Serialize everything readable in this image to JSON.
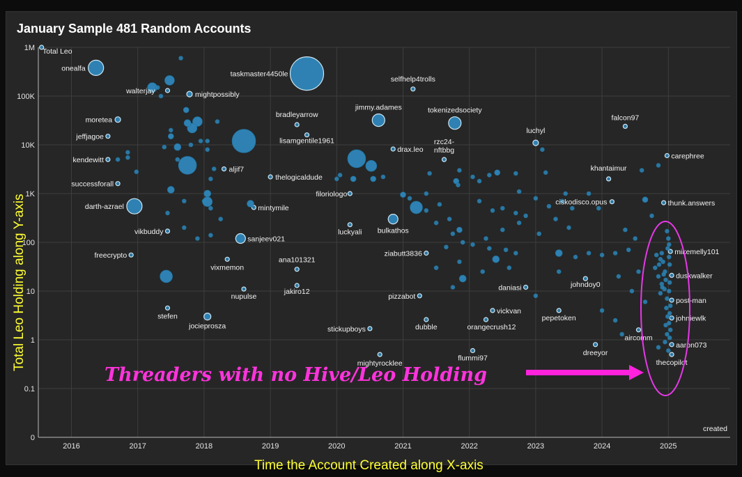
{
  "chart_data": {
    "type": "scatter",
    "title": "January Sample 481 Random Accounts",
    "xlabel": "Time the Account Created along X-axis",
    "ylabel": "Total Leo Holding along Y-axis",
    "x_axis_corner_label": "created",
    "y_axis_corner_label": "Total Leo",
    "x_ticks": [
      "2016",
      "2017",
      "2018",
      "2019",
      "2020",
      "2021",
      "2022",
      "2023",
      "2024",
      "2025"
    ],
    "y_ticks": [
      "0",
      "0.1",
      "1",
      "10",
      "100",
      "1K",
      "10K",
      "100K",
      "1M"
    ],
    "y_scale": "log",
    "xlim": [
      2015.5,
      2025.95
    ],
    "grid": true,
    "colors": {
      "point_fill": "#2e86b9",
      "point_stroke": "#cfe6f2",
      "annotation": "#ff22dd",
      "axis_title": "#ffff33"
    },
    "annotation": {
      "text": "Threaders with no Hive/Leo Holding"
    },
    "points": [
      {
        "x": 2015.55,
        "y": 1000000,
        "size": 3,
        "label": "Total Leo"
      },
      {
        "x": 2016.37,
        "y": 380000,
        "size": 11,
        "label": "onealfa"
      },
      {
        "x": 2017.45,
        "y": 130000,
        "size": 3,
        "label": "walterjay"
      },
      {
        "x": 2017.78,
        "y": 110000,
        "size": 4,
        "label": "mightpossibly"
      },
      {
        "x": 2019.55,
        "y": 290000,
        "size": 24,
        "label": "taskmaster4450le"
      },
      {
        "x": 2021.15,
        "y": 140000,
        "size": 3,
        "label": "selfhelp4trolls"
      },
      {
        "x": 2016.7,
        "y": 33000,
        "size": 4,
        "label": "moretea"
      },
      {
        "x": 2016.55,
        "y": 15000,
        "size": 3,
        "label": "jeffjagoe"
      },
      {
        "x": 2016.55,
        "y": 5000,
        "size": 3,
        "label": "kendewitt"
      },
      {
        "x": 2016.7,
        "y": 1600,
        "size": 3,
        "label": "successforall"
      },
      {
        "x": 2016.95,
        "y": 550,
        "size": 11,
        "label": "darth-azrael"
      },
      {
        "x": 2017.45,
        "y": 170,
        "size": 3,
        "label": "vikbuddy"
      },
      {
        "x": 2016.9,
        "y": 55,
        "size": 3,
        "label": "freecrypto"
      },
      {
        "x": 2017.45,
        "y": 4.5,
        "size": 3,
        "label": "stefen"
      },
      {
        "x": 2018.05,
        "y": 3,
        "size": 5,
        "label": "jocieprosza"
      },
      {
        "x": 2018.35,
        "y": 45,
        "size": 3,
        "label": "vixmemon"
      },
      {
        "x": 2018.6,
        "y": 11,
        "size": 3,
        "label": "nupulse"
      },
      {
        "x": 2018.55,
        "y": 120,
        "size": 7,
        "label": "sanjeev021"
      },
      {
        "x": 2018.75,
        "y": 520,
        "size": 3,
        "label": "mintymile"
      },
      {
        "x": 2018.3,
        "y": 3200,
        "size": 3,
        "label": "aljif7"
      },
      {
        "x": 2019.0,
        "y": 2200,
        "size": 3,
        "label": "thelogicaldude"
      },
      {
        "x": 2019.4,
        "y": 26000,
        "size": 3,
        "label": "bradleyarrow"
      },
      {
        "x": 2019.55,
        "y": 16000,
        "size": 3,
        "label": "lisamgentile1961"
      },
      {
        "x": 2019.4,
        "y": 28,
        "size": 3,
        "label": "ana101321"
      },
      {
        "x": 2019.4,
        "y": 13,
        "size": 3,
        "label": "jakiro12"
      },
      {
        "x": 2020.2,
        "y": 1000,
        "size": 3,
        "label": "filoriologo"
      },
      {
        "x": 2020.2,
        "y": 230,
        "size": 3,
        "label": "luckyali"
      },
      {
        "x": 2020.63,
        "y": 32000,
        "size": 9,
        "label": "jimmy.adames"
      },
      {
        "x": 2020.85,
        "y": 8200,
        "size": 3,
        "label": "drax.leo"
      },
      {
        "x": 2020.85,
        "y": 300,
        "size": 7,
        "label": "bulkathos"
      },
      {
        "x": 2021.35,
        "y": 60,
        "size": 3,
        "label": "ziabutt3836"
      },
      {
        "x": 2021.25,
        "y": 8,
        "size": 3,
        "label": "pizzabot"
      },
      {
        "x": 2020.5,
        "y": 1.7,
        "size": 3,
        "label": "stickupboys"
      },
      {
        "x": 2021.35,
        "y": 2.6,
        "size": 3,
        "label": "dubble"
      },
      {
        "x": 2021.78,
        "y": 28000,
        "size": 9,
        "label": "tokenizedsociety"
      },
      {
        "x": 2021.62,
        "y": 5000,
        "size": 3,
        "label": "rzc24-nftbbg"
      },
      {
        "x": 2020.65,
        "y": 0.5,
        "size": 3,
        "label": "mightyrocklee"
      },
      {
        "x": 2022.05,
        "y": 0.6,
        "size": 3,
        "label": "flummi97"
      },
      {
        "x": 2022.35,
        "y": 4,
        "size": 3,
        "label": "vickvan"
      },
      {
        "x": 2022.25,
        "y": 2.6,
        "size": 3,
        "label": "orangecrush12"
      },
      {
        "x": 2022.85,
        "y": 12,
        "size": 3,
        "label": "daniasi"
      },
      {
        "x": 2023.0,
        "y": 11000,
        "size": 4,
        "label": "luchyl"
      },
      {
        "x": 2023.35,
        "y": 4,
        "size": 3,
        "label": "pepetoken"
      },
      {
        "x": 2023.75,
        "y": 18,
        "size": 3,
        "label": "johndoy0"
      },
      {
        "x": 2023.9,
        "y": 0.8,
        "size": 3,
        "label": "dreeyor"
      },
      {
        "x": 2024.35,
        "y": 24000,
        "size": 3,
        "label": "falcon97"
      },
      {
        "x": 2024.1,
        "y": 2000,
        "size": 3,
        "label": "khantaimur"
      },
      {
        "x": 2024.15,
        "y": 680,
        "size": 3,
        "label": "ciskodisco.opus"
      },
      {
        "x": 2024.55,
        "y": 1.6,
        "size": 3,
        "label": "aircomm"
      },
      {
        "x": 2024.98,
        "y": 6000,
        "size": 3,
        "label": "carephree"
      },
      {
        "x": 2024.93,
        "y": 650,
        "size": 3,
        "label": "thunk.answers"
      },
      {
        "x": 2025.03,
        "y": 65,
        "size": 3,
        "label": "mikemelly101"
      },
      {
        "x": 2025.05,
        "y": 21,
        "size": 3,
        "label": "duskwalker"
      },
      {
        "x": 2025.05,
        "y": 6.5,
        "size": 3,
        "label": "post-man"
      },
      {
        "x": 2025.05,
        "y": 2.8,
        "size": 3,
        "label": "johniewlk"
      },
      {
        "x": 2025.05,
        "y": 0.8,
        "size": 3,
        "label": "aaron073"
      },
      {
        "x": 2025.05,
        "y": 0.5,
        "size": 3,
        "label": "thecopilot"
      },
      {
        "x": 2017.22,
        "y": 150000,
        "size": 7
      },
      {
        "x": 2017.48,
        "y": 210000,
        "size": 7
      },
      {
        "x": 2017.35,
        "y": 100000,
        "size": 3
      },
      {
        "x": 2017.3,
        "y": 150000,
        "size": 3
      },
      {
        "x": 2017.73,
        "y": 52000,
        "size": 4
      },
      {
        "x": 2017.9,
        "y": 30000,
        "size": 7
      },
      {
        "x": 2017.82,
        "y": 22000,
        "size": 7
      },
      {
        "x": 2017.75,
        "y": 28000,
        "size": 5
      },
      {
        "x": 2018.2,
        "y": 30000,
        "size": 3
      },
      {
        "x": 2017.5,
        "y": 15000,
        "size": 4
      },
      {
        "x": 2017.6,
        "y": 9000,
        "size": 5
      },
      {
        "x": 2017.4,
        "y": 9000,
        "size": 3
      },
      {
        "x": 2017.8,
        "y": 10000,
        "size": 3
      },
      {
        "x": 2017.95,
        "y": 12000,
        "size": 3
      },
      {
        "x": 2018.05,
        "y": 12000,
        "size": 3
      },
      {
        "x": 2018.05,
        "y": 8000,
        "size": 3
      },
      {
        "x": 2018.6,
        "y": 12000,
        "size": 17
      },
      {
        "x": 2017.75,
        "y": 3800,
        "size": 13
      },
      {
        "x": 2017.6,
        "y": 5000,
        "size": 3
      },
      {
        "x": 2018.15,
        "y": 3200,
        "size": 3
      },
      {
        "x": 2018.1,
        "y": 2000,
        "size": 3
      },
      {
        "x": 2017.5,
        "y": 1200,
        "size": 5
      },
      {
        "x": 2017.7,
        "y": 700,
        "size": 3
      },
      {
        "x": 2018.0,
        "y": 700,
        "size": 3
      },
      {
        "x": 2018.05,
        "y": 1000,
        "size": 5
      },
      {
        "x": 2018.05,
        "y": 680,
        "size": 7
      },
      {
        "x": 2018.25,
        "y": 300,
        "size": 3
      },
      {
        "x": 2018.1,
        "y": 500,
        "size": 3
      },
      {
        "x": 2017.45,
        "y": 400,
        "size": 3
      },
      {
        "x": 2017.7,
        "y": 200,
        "size": 3
      },
      {
        "x": 2017.9,
        "y": 120,
        "size": 3
      },
      {
        "x": 2018.1,
        "y": 140,
        "size": 3
      },
      {
        "x": 2018.7,
        "y": 620,
        "size": 5
      },
      {
        "x": 2017.43,
        "y": 20,
        "size": 9
      },
      {
        "x": 2016.7,
        "y": 5000,
        "size": 3
      },
      {
        "x": 2016.85,
        "y": 7000,
        "size": 3
      },
      {
        "x": 2016.85,
        "y": 5500,
        "size": 3
      },
      {
        "x": 2016.98,
        "y": 2800,
        "size": 3
      },
      {
        "x": 2017.5,
        "y": 20000,
        "size": 3
      },
      {
        "x": 2017.65,
        "y": 600000,
        "size": 3
      },
      {
        "x": 2020.3,
        "y": 5200,
        "size": 13
      },
      {
        "x": 2020.52,
        "y": 3700,
        "size": 8
      },
      {
        "x": 2020.25,
        "y": 2000,
        "size": 4
      },
      {
        "x": 2020.05,
        "y": 2400,
        "size": 3
      },
      {
        "x": 2020.55,
        "y": 2000,
        "size": 4
      },
      {
        "x": 2020.7,
        "y": 2200,
        "size": 3
      },
      {
        "x": 2020.0,
        "y": 2000,
        "size": 3
      },
      {
        "x": 2021.2,
        "y": 520,
        "size": 9
      },
      {
        "x": 2021.0,
        "y": 950,
        "size": 4
      },
      {
        "x": 2021.1,
        "y": 800,
        "size": 3
      },
      {
        "x": 2021.35,
        "y": 1000,
        "size": 3
      },
      {
        "x": 2021.4,
        "y": 2600,
        "size": 3
      },
      {
        "x": 2021.55,
        "y": 600,
        "size": 3
      },
      {
        "x": 2021.35,
        "y": 450,
        "size": 3
      },
      {
        "x": 2021.5,
        "y": 250,
        "size": 3
      },
      {
        "x": 2021.7,
        "y": 300,
        "size": 3
      },
      {
        "x": 2021.75,
        "y": 150,
        "size": 3
      },
      {
        "x": 2021.65,
        "y": 80,
        "size": 3
      },
      {
        "x": 2021.5,
        "y": 30,
        "size": 3
      },
      {
        "x": 2021.75,
        "y": 12,
        "size": 3
      },
      {
        "x": 2021.9,
        "y": 18,
        "size": 5
      },
      {
        "x": 2021.85,
        "y": 40,
        "size": 3
      },
      {
        "x": 2021.9,
        "y": 100,
        "size": 3
      },
      {
        "x": 2021.85,
        "y": 180,
        "size": 4
      },
      {
        "x": 2021.8,
        "y": 1800,
        "size": 4
      },
      {
        "x": 2021.85,
        "y": 3000,
        "size": 3
      },
      {
        "x": 2021.83,
        "y": 1500,
        "size": 3
      },
      {
        "x": 2022.05,
        "y": 2200,
        "size": 3
      },
      {
        "x": 2022.15,
        "y": 1800,
        "size": 3
      },
      {
        "x": 2022.3,
        "y": 2400,
        "size": 3
      },
      {
        "x": 2022.42,
        "y": 2700,
        "size": 4
      },
      {
        "x": 2022.7,
        "y": 2600,
        "size": 3
      },
      {
        "x": 2022.15,
        "y": 700,
        "size": 3
      },
      {
        "x": 2022.35,
        "y": 450,
        "size": 3
      },
      {
        "x": 2022.5,
        "y": 500,
        "size": 3
      },
      {
        "x": 2022.7,
        "y": 400,
        "size": 3
      },
      {
        "x": 2022.75,
        "y": 250,
        "size": 3
      },
      {
        "x": 2022.5,
        "y": 180,
        "size": 3
      },
      {
        "x": 2022.25,
        "y": 120,
        "size": 3
      },
      {
        "x": 2022.05,
        "y": 90,
        "size": 3
      },
      {
        "x": 2022.3,
        "y": 75,
        "size": 3
      },
      {
        "x": 2022.55,
        "y": 70,
        "size": 3
      },
      {
        "x": 2022.4,
        "y": 45,
        "size": 5
      },
      {
        "x": 2022.7,
        "y": 60,
        "size": 3
      },
      {
        "x": 2022.2,
        "y": 25,
        "size": 3
      },
      {
        "x": 2022.6,
        "y": 30,
        "size": 3
      },
      {
        "x": 2022.75,
        "y": 1100,
        "size": 3
      },
      {
        "x": 2023.0,
        "y": 800,
        "size": 3
      },
      {
        "x": 2022.85,
        "y": 350,
        "size": 3
      },
      {
        "x": 2023.05,
        "y": 150,
        "size": 3
      },
      {
        "x": 2023.2,
        "y": 550,
        "size": 3
      },
      {
        "x": 2023.4,
        "y": 700,
        "size": 3
      },
      {
        "x": 2023.3,
        "y": 300,
        "size": 3
      },
      {
        "x": 2023.55,
        "y": 500,
        "size": 3
      },
      {
        "x": 2023.8,
        "y": 1000,
        "size": 3
      },
      {
        "x": 2023.95,
        "y": 500,
        "size": 3
      },
      {
        "x": 2023.5,
        "y": 200,
        "size": 3
      },
      {
        "x": 2023.35,
        "y": 60,
        "size": 5
      },
      {
        "x": 2023.6,
        "y": 50,
        "size": 3
      },
      {
        "x": 2023.8,
        "y": 60,
        "size": 3
      },
      {
        "x": 2024.0,
        "y": 55,
        "size": 3
      },
      {
        "x": 2024.2,
        "y": 60,
        "size": 3
      },
      {
        "x": 2024.4,
        "y": 70,
        "size": 3
      },
      {
        "x": 2024.35,
        "y": 180,
        "size": 3
      },
      {
        "x": 2024.65,
        "y": 750,
        "size": 4
      },
      {
        "x": 2024.75,
        "y": 350,
        "size": 3
      },
      {
        "x": 2024.5,
        "y": 120,
        "size": 3
      },
      {
        "x": 2023.35,
        "y": 25,
        "size": 3
      },
      {
        "x": 2023.0,
        "y": 8,
        "size": 3
      },
      {
        "x": 2024.25,
        "y": 20,
        "size": 3
      },
      {
        "x": 2024.55,
        "y": 25,
        "size": 3
      },
      {
        "x": 2024.45,
        "y": 10,
        "size": 3
      },
      {
        "x": 2024.65,
        "y": 6,
        "size": 3
      },
      {
        "x": 2024.0,
        "y": 4,
        "size": 3
      },
      {
        "x": 2024.2,
        "y": 2.5,
        "size": 3
      },
      {
        "x": 2024.3,
        "y": 1.3,
        "size": 3
      },
      {
        "x": 2024.85,
        "y": 0.7,
        "size": 3
      },
      {
        "x": 2024.6,
        "y": 3000,
        "size": 3
      },
      {
        "x": 2024.85,
        "y": 3800,
        "size": 3
      },
      {
        "x": 2023.15,
        "y": 2700,
        "size": 3
      },
      {
        "x": 2023.45,
        "y": 1000,
        "size": 3
      },
      {
        "x": 2023.1,
        "y": 8000,
        "size": 3
      },
      {
        "x": 2024.98,
        "y": 170,
        "size": 3
      },
      {
        "x": 2024.82,
        "y": 55,
        "size": 3
      },
      {
        "x": 2024.88,
        "y": 45,
        "size": 3
      },
      {
        "x": 2024.8,
        "y": 30,
        "size": 3
      },
      {
        "x": 2024.85,
        "y": 20,
        "size": 3
      },
      {
        "x": 2024.9,
        "y": 14,
        "size": 3
      },
      {
        "x": 2024.88,
        "y": 9,
        "size": 3
      },
      {
        "x": 2024.92,
        "y": 40,
        "size": 3
      },
      {
        "x": 2024.95,
        "y": 25,
        "size": 3
      },
      {
        "x": 2024.96,
        "y": 17,
        "size": 3
      },
      {
        "x": 2024.94,
        "y": 11,
        "size": 3
      },
      {
        "x": 2024.98,
        "y": 7,
        "size": 3
      },
      {
        "x": 2024.97,
        "y": 4.5,
        "size": 3
      },
      {
        "x": 2024.99,
        "y": 3,
        "size": 3
      },
      {
        "x": 2024.96,
        "y": 2,
        "size": 3
      },
      {
        "x": 2024.98,
        "y": 1.3,
        "size": 3
      },
      {
        "x": 2024.95,
        "y": 0.9,
        "size": 3
      },
      {
        "x": 2025.0,
        "y": 0.6,
        "size": 3
      },
      {
        "x": 2025.0,
        "y": 120,
        "size": 3
      },
      {
        "x": 2025.01,
        "y": 90,
        "size": 3
      },
      {
        "x": 2025.01,
        "y": 50,
        "size": 3
      },
      {
        "x": 2025.02,
        "y": 35,
        "size": 3
      },
      {
        "x": 2025.02,
        "y": 15,
        "size": 3
      },
      {
        "x": 2025.01,
        "y": 10,
        "size": 3
      },
      {
        "x": 2025.03,
        "y": 5,
        "size": 3
      },
      {
        "x": 2025.02,
        "y": 3.5,
        "size": 3
      },
      {
        "x": 2025.01,
        "y": 2.2,
        "size": 3
      },
      {
        "x": 2025.03,
        "y": 1.6,
        "size": 3
      },
      {
        "x": 2025.02,
        "y": 1.1,
        "size": 3
      },
      {
        "x": 2024.99,
        "y": 75,
        "size": 3
      },
      {
        "x": 2024.9,
        "y": 60,
        "size": 3
      },
      {
        "x": 2024.86,
        "y": 35,
        "size": 3
      },
      {
        "x": 2024.93,
        "y": 22,
        "size": 3
      },
      {
        "x": 2024.91,
        "y": 12,
        "size": 3
      }
    ]
  }
}
